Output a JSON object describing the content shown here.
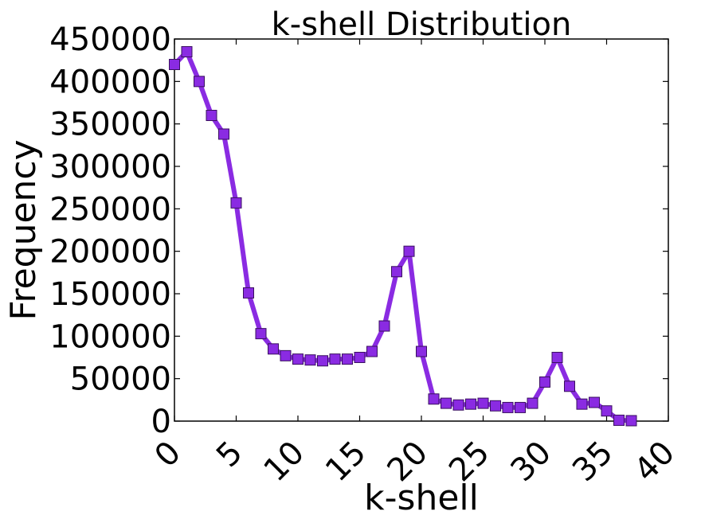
{
  "chart_data": {
    "type": "line",
    "title": "k-shell Distribution",
    "xlabel": "k-shell",
    "ylabel": "Frequency",
    "xlim": [
      0,
      40
    ],
    "ylim": [
      0,
      450000
    ],
    "xticks": [
      "0",
      "5",
      "10",
      "15",
      "20",
      "25",
      "30",
      "35",
      "40"
    ],
    "yticks": [
      "0",
      "50000",
      "100000",
      "150000",
      "200000",
      "250000",
      "300000",
      "350000",
      "400000",
      "450000"
    ],
    "grid": false,
    "legend": "none",
    "line_color": "#8a2be2",
    "marker": "square",
    "series": [
      {
        "x": [
          0,
          1,
          2,
          3,
          4,
          5,
          6,
          7,
          8,
          9,
          10,
          11,
          12,
          13,
          14,
          15,
          16,
          17,
          18,
          19,
          20,
          21,
          22,
          23,
          24,
          25,
          26,
          27,
          28,
          29,
          30,
          31,
          32,
          33,
          34,
          35,
          36,
          37
        ],
        "values": [
          420000,
          435000,
          400000,
          360000,
          338000,
          257000,
          151000,
          103000,
          85000,
          77000,
          73000,
          72000,
          71000,
          73000,
          73000,
          75000,
          82000,
          112000,
          176000,
          200000,
          82000,
          26000,
          21000,
          19000,
          20000,
          21000,
          18000,
          16000,
          16000,
          21000,
          46000,
          75000,
          41000,
          20000,
          22000,
          12000,
          1000,
          500
        ]
      }
    ]
  }
}
